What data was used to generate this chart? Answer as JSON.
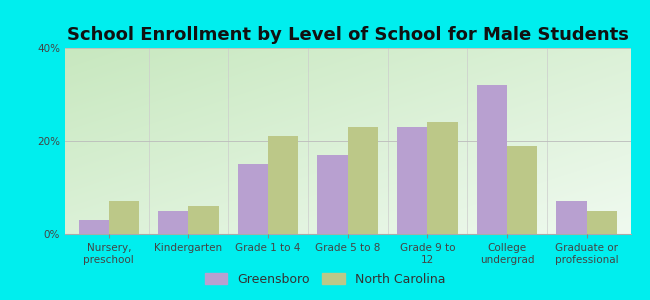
{
  "title": "School Enrollment by Level of School for Male Students",
  "categories": [
    "Nursery,\npreschool",
    "Kindergarten",
    "Grade 1 to 4",
    "Grade 5 to 8",
    "Grade 9 to\n12",
    "College\nundergrad",
    "Graduate or\nprofessional"
  ],
  "greensboro": [
    3,
    5,
    15,
    17,
    23,
    32,
    7
  ],
  "north_carolina": [
    7,
    6,
    21,
    23,
    24,
    19,
    5
  ],
  "greensboro_color": "#b8a0d0",
  "north_carolina_color": "#bcc888",
  "background_color": "#00eeee",
  "grad_color_top_left": "#c8e8c0",
  "grad_color_bottom_right": "#e8f8f8",
  "ylim": [
    0,
    40
  ],
  "yticks": [
    0,
    20,
    40
  ],
  "ytick_labels": [
    "0%",
    "20%",
    "40%"
  ],
  "bar_width": 0.38,
  "title_fontsize": 13,
  "tick_fontsize": 7.5,
  "legend_fontsize": 9
}
